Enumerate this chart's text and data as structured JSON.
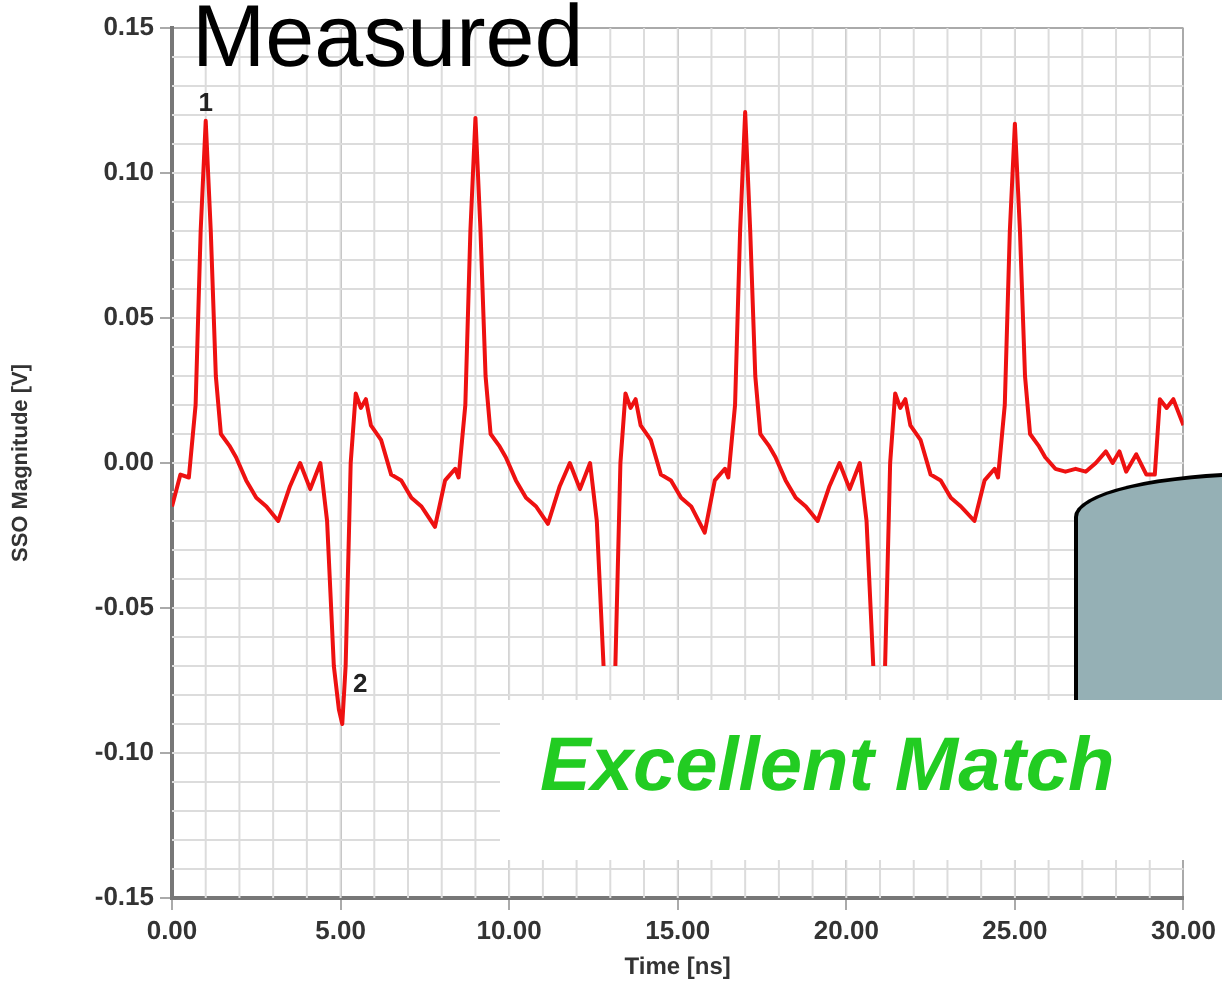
{
  "chart_data": {
    "type": "line",
    "title": "Measured",
    "xlabel": "Time [ns]",
    "ylabel": "SSO Magnitude [V]",
    "xlim": [
      0,
      30
    ],
    "ylim": [
      -0.15,
      0.15
    ],
    "xticks": [
      {
        "value": 0,
        "label": "0.00"
      },
      {
        "value": 5,
        "label": "5.00"
      },
      {
        "value": 10,
        "label": "10.00"
      },
      {
        "value": 15,
        "label": "15.00"
      },
      {
        "value": 20,
        "label": "20.00"
      },
      {
        "value": 25,
        "label": "25.00"
      },
      {
        "value": 30,
        "label": "30.00"
      }
    ],
    "yticks": [
      {
        "value": -0.15,
        "label": "-0.15"
      },
      {
        "value": -0.1,
        "label": "-0.10"
      },
      {
        "value": -0.05,
        "label": "-0.05"
      },
      {
        "value": 0,
        "label": "0.00"
      },
      {
        "value": 0.05,
        "label": "0.05"
      },
      {
        "value": 0.1,
        "label": "0.10"
      },
      {
        "value": 0.15,
        "label": "0.15"
      }
    ],
    "grid": true,
    "legend": false,
    "annotations": [
      {
        "text": "1",
        "x": 1.0,
        "y": 0.118
      },
      {
        "text": "2",
        "x": 5.05,
        "y": -0.09
      },
      "Excellent Match"
    ],
    "series": [
      {
        "color": "#ee1111",
        "x": [
          0,
          0.25,
          0.5,
          0.7,
          0.85,
          1.0,
          1.15,
          1.3,
          1.45,
          1.7,
          1.9,
          2.2,
          2.5,
          2.8,
          3.15,
          3.5,
          3.8,
          4.1,
          4.4,
          4.6,
          4.8,
          4.95,
          5.05,
          5.15,
          5.3,
          5.45,
          5.6,
          5.75,
          5.9,
          6.2,
          6.5,
          6.8,
          7.1,
          7.4,
          7.8,
          8.1,
          8.4,
          8.5,
          8.7,
          8.85,
          9.0,
          9.15,
          9.3,
          9.45,
          9.7,
          9.9,
          10.2,
          10.5,
          10.8,
          11.15,
          11.5,
          11.8,
          12.1,
          12.4,
          12.6,
          12.8,
          12.95,
          13.05,
          13.15,
          13.3,
          13.45,
          13.6,
          13.75,
          13.9,
          14.2,
          14.5,
          14.8,
          15.1,
          15.4,
          15.8,
          16.1,
          16.4,
          16.5,
          16.7,
          16.85,
          17.0,
          17.15,
          17.3,
          17.45,
          17.7,
          17.9,
          18.2,
          18.5,
          18.8,
          19.15,
          19.5,
          19.8,
          20.1,
          20.4,
          20.6,
          20.8,
          20.95,
          21.05,
          21.15,
          21.3,
          21.45,
          21.6,
          21.75,
          21.9,
          22.2,
          22.5,
          22.8,
          23.1,
          23.4,
          23.8,
          24.1,
          24.4,
          24.5,
          24.7,
          24.85,
          25.0,
          25.15,
          25.3,
          25.45,
          25.7,
          25.9,
          26.2,
          26.5,
          26.8,
          27.1,
          27.4,
          27.7,
          27.9,
          28.1,
          28.3,
          28.6,
          28.9,
          29.15,
          29.3,
          29.5,
          29.7,
          30
        ],
        "values": [
          -0.015,
          -0.004,
          -0.005,
          0.02,
          0.08,
          0.118,
          0.08,
          0.03,
          0.01,
          0.006,
          0.002,
          -0.006,
          -0.012,
          -0.015,
          -0.02,
          -0.008,
          0,
          -0.009,
          0,
          -0.02,
          -0.07,
          -0.085,
          -0.09,
          -0.07,
          0,
          0.024,
          0.019,
          0.022,
          0.013,
          0.008,
          -0.004,
          -0.006,
          -0.012,
          -0.015,
          -0.022,
          -0.006,
          -0.002,
          -0.005,
          0.02,
          0.08,
          0.119,
          0.08,
          0.03,
          0.01,
          0.006,
          0.002,
          -0.006,
          -0.012,
          -0.015,
          -0.021,
          -0.008,
          0,
          -0.009,
          0,
          -0.02,
          -0.07,
          null,
          null,
          -0.07,
          0,
          0.024,
          0.019,
          0.022,
          0.013,
          0.008,
          -0.004,
          -0.006,
          -0.012,
          -0.015,
          -0.024,
          -0.006,
          -0.002,
          -0.005,
          0.02,
          0.08,
          0.121,
          0.08,
          0.03,
          0.01,
          0.006,
          0.002,
          -0.006,
          -0.012,
          -0.015,
          -0.02,
          -0.008,
          0,
          -0.009,
          0,
          -0.02,
          -0.07,
          null,
          null,
          -0.07,
          0,
          0.024,
          0.019,
          0.022,
          0.013,
          0.008,
          -0.004,
          -0.006,
          -0.012,
          -0.015,
          -0.02,
          -0.006,
          -0.002,
          -0.005,
          0.02,
          0.08,
          0.117,
          0.08,
          0.03,
          0.01,
          0.006,
          0.002,
          -0.002,
          -0.003,
          -0.002,
          -0.003,
          0,
          0.004,
          0,
          0.004,
          -0.003,
          0.003,
          -0.004,
          -0.004,
          0.022,
          0.019,
          0.022,
          0.013
        ]
      }
    ]
  }
}
